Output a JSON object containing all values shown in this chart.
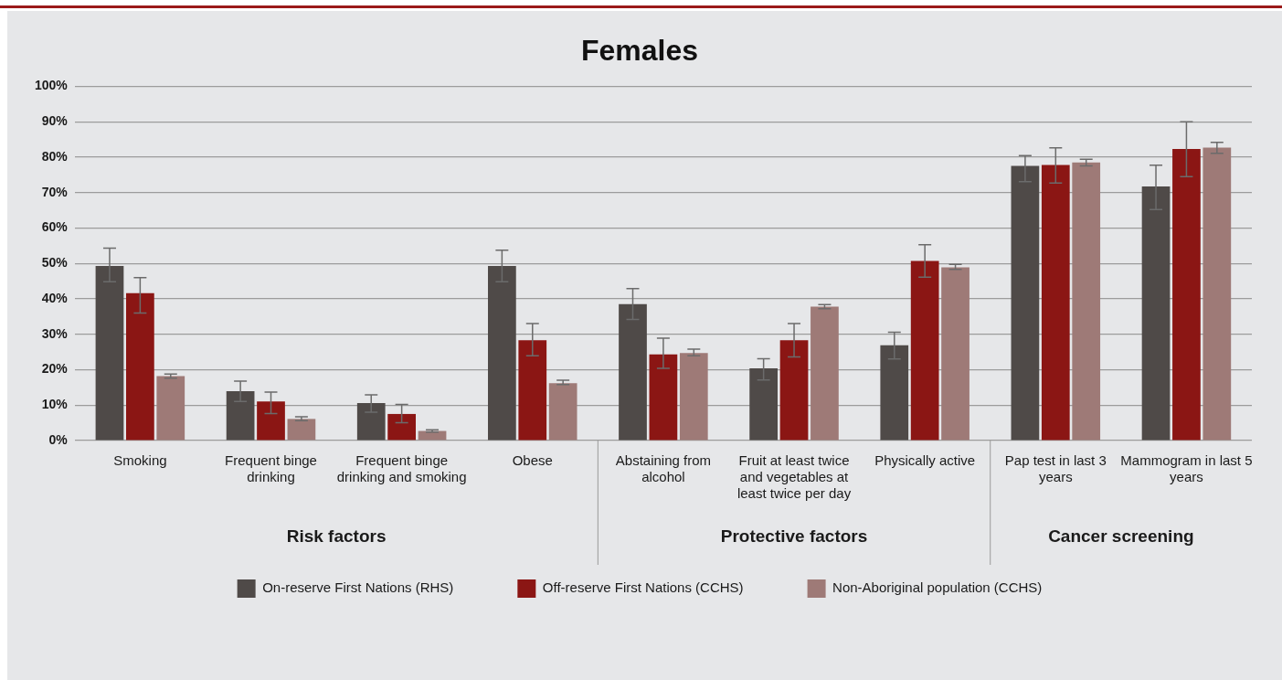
{
  "chart_data": {
    "type": "bar",
    "title": "Females",
    "categories": [
      "Smoking",
      "Frequent binge drinking",
      "Frequent binge drinking and smoking",
      "Obese",
      "Abstaining from alcohol",
      "Fruit at least twice and vegetables at least twice per day",
      "Physically active",
      "Pap test in last 3 years",
      "Mammogram in last 5 years"
    ],
    "series": [
      {
        "name": "On-reserve First Nations (RHS)",
        "color": "#4f4a48",
        "values": [
          49.3,
          13.9,
          10.6,
          49.3,
          38.5,
          20.4,
          26.9,
          77.5,
          71.7
        ],
        "errors": [
          [
            44.8,
            54.3
          ],
          [
            11,
            16.8
          ],
          [
            8,
            12.9
          ],
          [
            44.8,
            53.7
          ],
          [
            34.2,
            42.9
          ],
          [
            17.1,
            23.1
          ],
          [
            23,
            30.6
          ],
          [
            73.1,
            80.4
          ],
          [
            65.2,
            77.7
          ]
        ]
      },
      {
        "name": "Off-reserve First Nations (CCHS)",
        "color": "#8b1614",
        "values": [
          41.6,
          11,
          7.5,
          28.3,
          24.3,
          28.3,
          50.7,
          77.8,
          82.3
        ],
        "errors": [
          [
            36,
            46
          ],
          [
            7.6,
            13.7
          ],
          [
            5,
            10.2
          ],
          [
            23.9,
            33
          ],
          [
            20.4,
            28.9
          ],
          [
            23.6,
            33
          ],
          [
            46.1,
            55.3
          ],
          [
            72.7,
            82.6
          ],
          [
            74.5,
            90
          ]
        ]
      },
      {
        "name": "Non-Aboriginal population (CCHS)",
        "color": "#9e7a77",
        "values": [
          18.2,
          6.1,
          2.7,
          16.2,
          24.7,
          37.8,
          48.9,
          78.5,
          82.7
        ],
        "errors": [
          [
            17.6,
            18.8
          ],
          [
            5.6,
            6.7
          ],
          [
            2.4,
            3
          ],
          [
            15.8,
            17
          ],
          [
            23.9,
            25.8
          ],
          [
            37.2,
            38.4
          ],
          [
            48.3,
            49.7
          ],
          [
            77.5,
            79.4
          ],
          [
            81.1,
            84.2
          ]
        ]
      }
    ],
    "ylim": [
      0,
      100
    ],
    "yticks": [
      {
        "value": 0,
        "label": "0%"
      },
      {
        "value": 10,
        "label": "10%"
      },
      {
        "value": 20,
        "label": "20%"
      },
      {
        "value": 30,
        "label": "30%"
      },
      {
        "value": 40,
        "label": "40%"
      },
      {
        "value": 50,
        "label": "50%"
      },
      {
        "value": 60,
        "label": "60%"
      },
      {
        "value": 70,
        "label": "70%"
      },
      {
        "value": 80,
        "label": "80%"
      },
      {
        "value": 90,
        "label": "90%"
      },
      {
        "value": 100,
        "label": "100%"
      }
    ],
    "grid": "y",
    "legend": "bottom",
    "annotations": [
      "Risk factors",
      "Protective factors",
      "Cancer screening"
    ]
  }
}
